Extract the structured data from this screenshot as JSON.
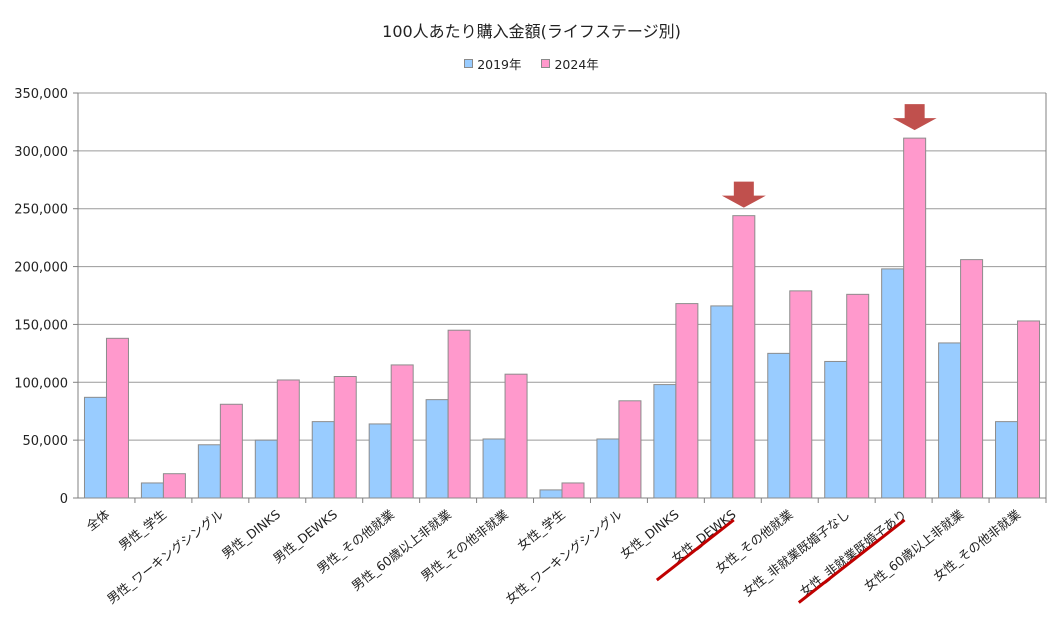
{
  "chart_data": {
    "type": "bar",
    "title": "100人あたり購入金額(ライフステージ別)",
    "categories": [
      "全体",
      "男性_学生",
      "男性_ワーキングシングル",
      "男性_DINKS",
      "男性_DEWKS",
      "男性_その他就業",
      "男性_60歳以上非就業",
      "男性_その他非就業",
      "女性_学生",
      "女性_ワーキングシングル",
      "女性_DINKS",
      "女性_DEWKS",
      "女性_その他就業",
      "女性_非就業既婚子なし",
      "女性_非就業既婚子あり",
      "女性_60歳以上非就業",
      "女性_その他非就業"
    ],
    "series": [
      {
        "name": "2019年",
        "color": "#99ccff",
        "values": [
          87000,
          13000,
          46000,
          50000,
          66000,
          64000,
          85000,
          51000,
          7000,
          51000,
          98000,
          166000,
          125000,
          118000,
          198000,
          134000,
          66000
        ]
      },
      {
        "name": "2024年",
        "color": "#ff99cc",
        "values": [
          138000,
          21000,
          81000,
          102000,
          105000,
          115000,
          145000,
          107000,
          13000,
          84000,
          168000,
          244000,
          179000,
          176000,
          311000,
          206000,
          153000
        ]
      }
    ],
    "ylim": [
      0,
      350000
    ],
    "yticks": [
      "0",
      "50,000",
      "100,000",
      "150,000",
      "200,000",
      "250,000",
      "300,000",
      "350,000"
    ],
    "grid": true,
    "legend_position": "top-center",
    "highlighted_categories": [
      "女性_DEWKS",
      "女性_非就業既婚子あり"
    ],
    "highlight_color": "#c0504d",
    "underline_color": "#c00000"
  }
}
